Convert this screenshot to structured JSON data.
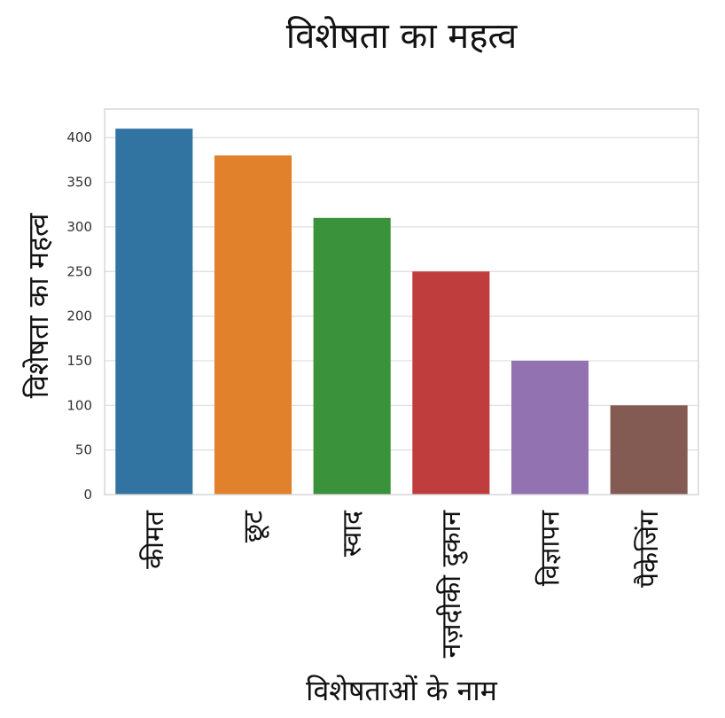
{
  "chart_data": {
    "type": "bar",
    "title": "विशेषता का महत्व",
    "xlabel": "विशेषताओं के नाम",
    "ylabel": "विशेषता का महत्व",
    "categories": [
      "कीमत",
      "छूट",
      "स्वाद",
      "नज़दीकी दुकान",
      "विज्ञापन",
      "पैकेजिंग"
    ],
    "values": [
      410,
      380,
      310,
      250,
      150,
      100
    ],
    "colors": [
      "#3274a1",
      "#e1812c",
      "#3a923a",
      "#c03d3e",
      "#9372b2",
      "#845b53"
    ],
    "yticks": [
      0,
      50,
      100,
      150,
      200,
      250,
      300,
      350,
      400
    ],
    "ylim": [
      0,
      432
    ],
    "grid": true,
    "legend": "none"
  }
}
